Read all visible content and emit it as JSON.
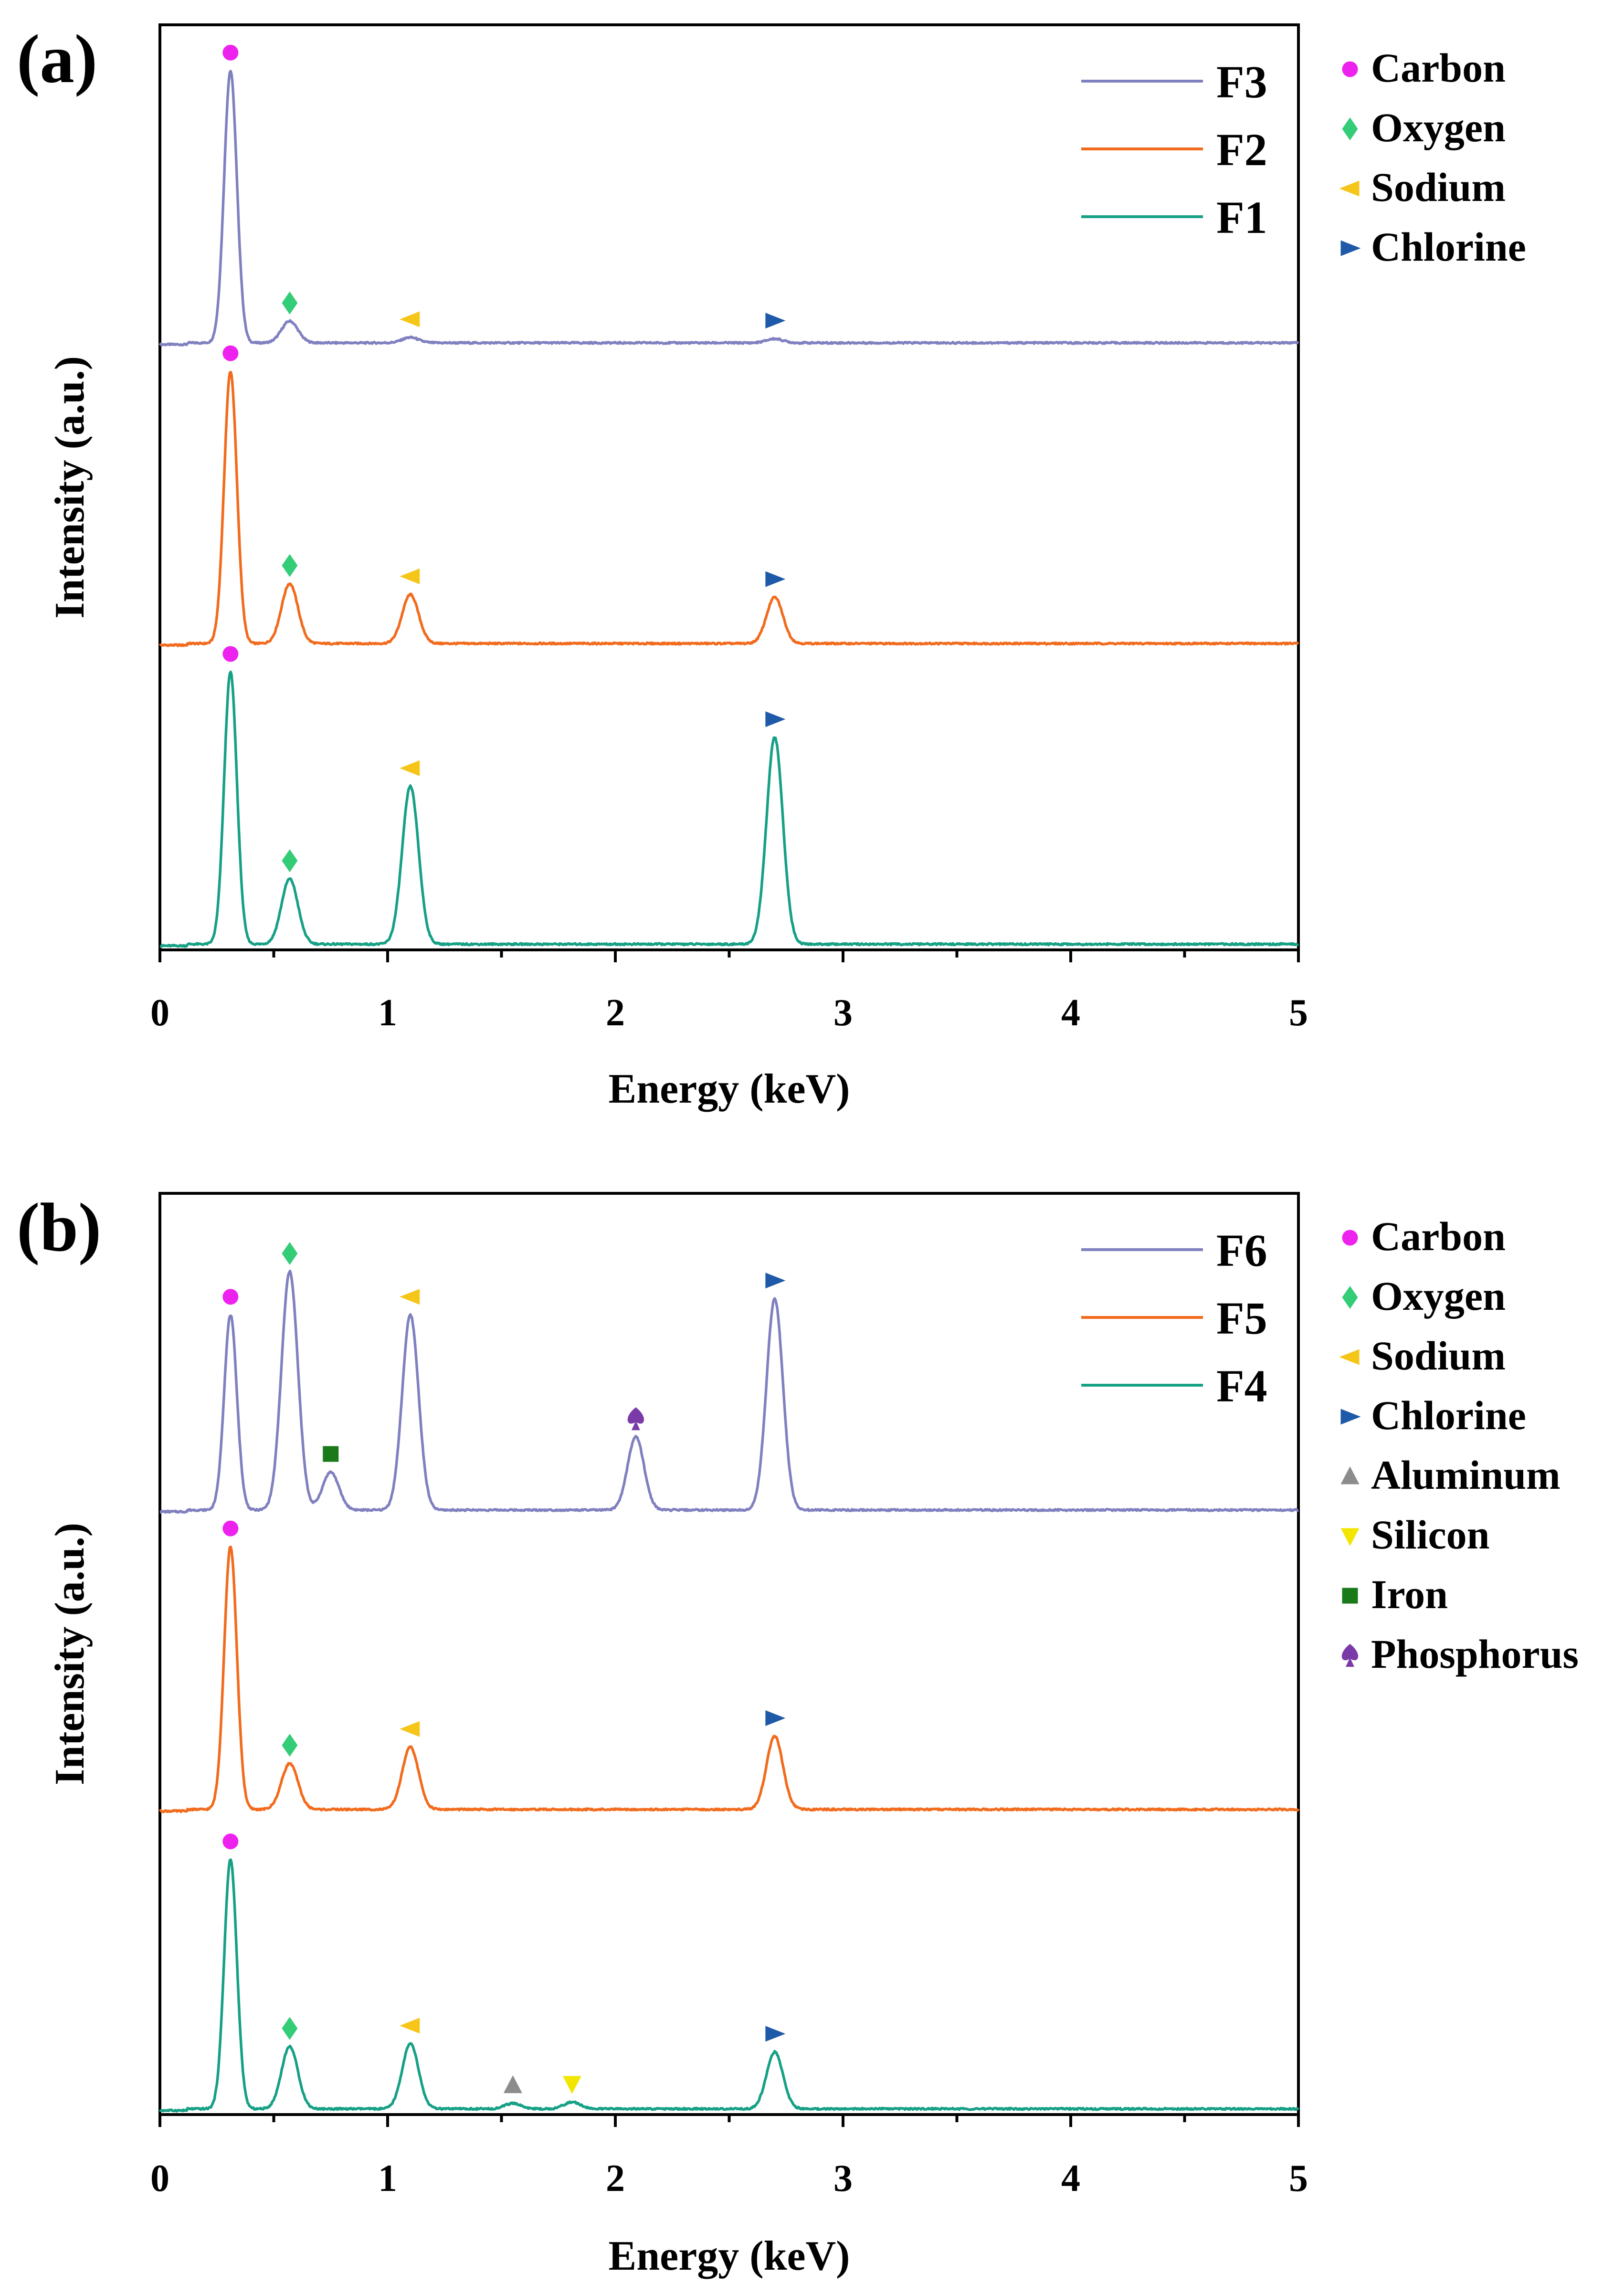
{
  "figure": {
    "element_colors": {
      "Carbon": "#ee22ee",
      "Oxygen": "#33cc77",
      "Sodium": "#f5c518",
      "Chlorine": "#1f5aa8",
      "Aluminum": "#8c8c8c",
      "Silicon": "#f2e600",
      "Iron": "#1a7a1a",
      "Phosphorus": "#7a3aa8"
    },
    "element_icons": {
      "Carbon": "circle",
      "Oxygen": "diamond",
      "Sodium": "triangle-left",
      "Chlorine": "triangle-right",
      "Aluminum": "triangle-up",
      "Silicon": "triangle-down",
      "Iron": "square",
      "Phosphorus": "spade"
    }
  },
  "chart_data": [
    {
      "type": "line",
      "panel_label": "(a)",
      "title": "",
      "xlabel": "Energy (keV)",
      "ylabel": "Intensity (a.u.)",
      "xlim": [
        0,
        5
      ],
      "xticks": [
        0,
        1,
        2,
        3,
        4,
        5
      ],
      "xtick_labels": [
        "0",
        "1",
        "2",
        "3",
        "4",
        "5"
      ],
      "y_ticks_shown": false,
      "grid": false,
      "stack_order_top_to_bottom": [
        "F3",
        "F2",
        "F1"
      ],
      "series": [
        {
          "name": "F3",
          "color": "#8080c0",
          "baseline": 2.0,
          "peaks": [
            {
              "element": "Carbon",
              "energy": 0.31,
              "height": 1.0
            },
            {
              "element": "Oxygen",
              "energy": 0.57,
              "height": 0.08
            },
            {
              "element": "Sodium",
              "energy": 1.1,
              "height": 0.02
            },
            {
              "element": "Chlorine",
              "energy": 2.7,
              "height": 0.015
            }
          ]
        },
        {
          "name": "F2",
          "color": "#f26b1d",
          "baseline": 1.0,
          "peaks": [
            {
              "element": "Carbon",
              "energy": 0.31,
              "height": 1.0
            },
            {
              "element": "Oxygen",
              "energy": 0.57,
              "height": 0.22
            },
            {
              "element": "Sodium",
              "energy": 1.1,
              "height": 0.18
            },
            {
              "element": "Chlorine",
              "energy": 2.7,
              "height": 0.17
            }
          ]
        },
        {
          "name": "F1",
          "color": "#16a085",
          "baseline": 0.0,
          "peaks": [
            {
              "element": "Carbon",
              "energy": 0.31,
              "height": 1.0
            },
            {
              "element": "Oxygen",
              "energy": 0.57,
              "height": 0.24
            },
            {
              "element": "Sodium",
              "energy": 1.1,
              "height": 0.58
            },
            {
              "element": "Chlorine",
              "energy": 2.7,
              "height": 0.76
            }
          ]
        }
      ],
      "legend_series": [
        "F3",
        "F2",
        "F1"
      ],
      "legend_elements": [
        "Carbon",
        "Oxygen",
        "Sodium",
        "Chlorine"
      ]
    },
    {
      "type": "line",
      "panel_label": "(b)",
      "title": "",
      "xlabel": "Energy (keV)",
      "ylabel": "Intensity (a.u.)",
      "xlim": [
        0,
        5
      ],
      "xticks": [
        0,
        1,
        2,
        3,
        4,
        5
      ],
      "xtick_labels": [
        "0",
        "1",
        "2",
        "3",
        "4",
        "5"
      ],
      "y_ticks_shown": false,
      "grid": false,
      "stack_order_top_to_bottom": [
        "F6",
        "F5",
        "F4"
      ],
      "series": [
        {
          "name": "F6",
          "color": "#8080c0",
          "baseline": 2.0,
          "peaks": [
            {
              "element": "Carbon",
              "energy": 0.31,
              "height": 0.72
            },
            {
              "element": "Oxygen",
              "energy": 0.57,
              "height": 0.88
            },
            {
              "element": "Iron",
              "energy": 0.75,
              "height": 0.14
            },
            {
              "element": "Sodium",
              "energy": 1.1,
              "height": 0.72
            },
            {
              "element": "Phosphorus",
              "energy": 2.09,
              "height": 0.27
            },
            {
              "element": "Chlorine",
              "energy": 2.7,
              "height": 0.78
            }
          ]
        },
        {
          "name": "F5",
          "color": "#f26b1d",
          "baseline": 1.0,
          "peaks": [
            {
              "element": "Carbon",
              "energy": 0.31,
              "height": 0.97
            },
            {
              "element": "Oxygen",
              "energy": 0.57,
              "height": 0.17
            },
            {
              "element": "Sodium",
              "energy": 1.1,
              "height": 0.23
            },
            {
              "element": "Chlorine",
              "energy": 2.7,
              "height": 0.27
            }
          ]
        },
        {
          "name": "F4",
          "color": "#16a085",
          "baseline": 0.0,
          "peaks": [
            {
              "element": "Carbon",
              "energy": 0.31,
              "height": 0.92
            },
            {
              "element": "Oxygen",
              "energy": 0.57,
              "height": 0.23
            },
            {
              "element": "Sodium",
              "energy": 1.1,
              "height": 0.24
            },
            {
              "element": "Aluminum",
              "energy": 1.55,
              "height": 0.02
            },
            {
              "element": "Silicon",
              "energy": 1.81,
              "height": 0.025
            },
            {
              "element": "Chlorine",
              "energy": 2.7,
              "height": 0.21
            }
          ]
        }
      ],
      "legend_series": [
        "F6",
        "F5",
        "F4"
      ],
      "legend_elements": [
        "Carbon",
        "Oxygen",
        "Sodium",
        "Chlorine",
        "Aluminum",
        "Silicon",
        "Iron",
        "Phosphorus"
      ]
    }
  ]
}
